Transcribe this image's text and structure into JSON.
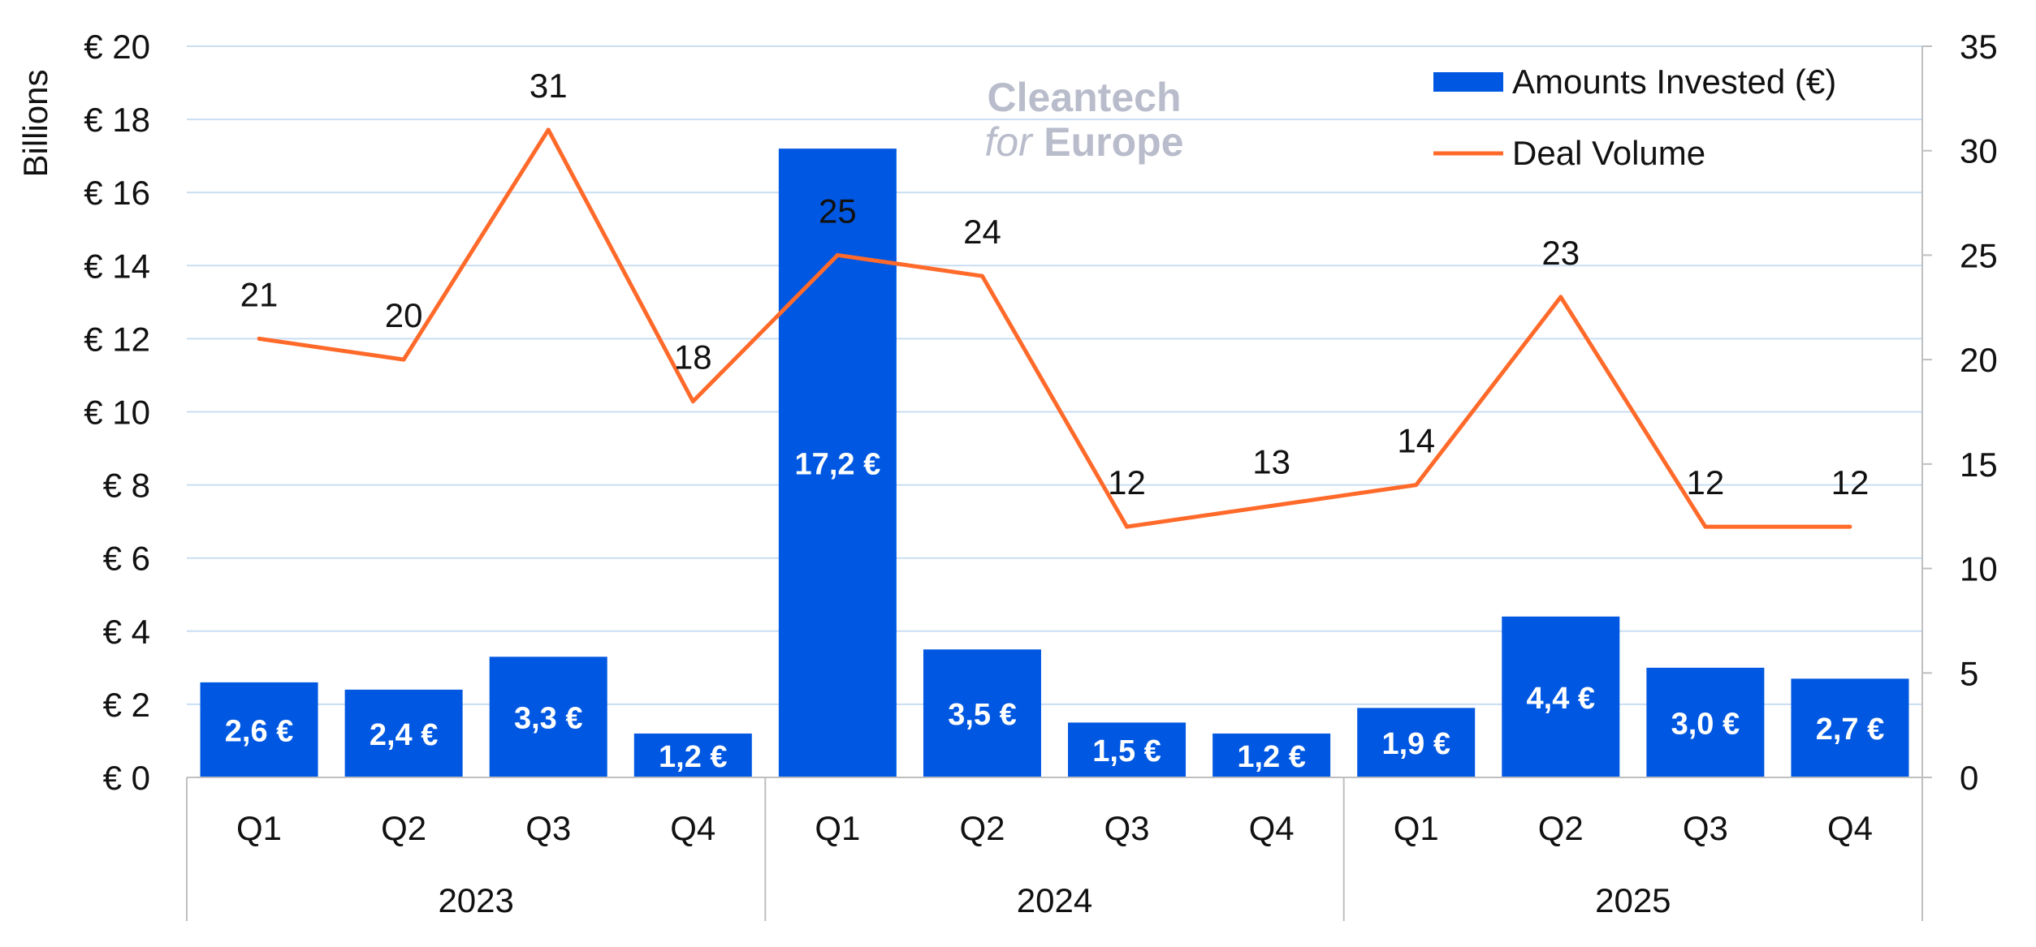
{
  "chart_data": {
    "type": "bar",
    "categories": [
      "Q1",
      "Q2",
      "Q3",
      "Q4",
      "Q1",
      "Q2",
      "Q3",
      "Q4",
      "Q1",
      "Q2",
      "Q3",
      "Q4"
    ],
    "groups": [
      {
        "label": "2023",
        "count": 4
      },
      {
        "label": "2024",
        "count": 4
      },
      {
        "label": "2025",
        "count": 4
      }
    ],
    "ylabel": "Billions",
    "ylim": [
      0,
      20
    ],
    "y_ticks": [
      "€ 0",
      "€ 2",
      "€ 4",
      "€ 6",
      "€ 8",
      "€ 10",
      "€ 12",
      "€ 14",
      "€ 16",
      "€ 18",
      "€ 20"
    ],
    "y2lim": [
      0,
      35
    ],
    "y2_ticks": [
      "0",
      "5",
      "10",
      "15",
      "20",
      "25",
      "30",
      "35"
    ],
    "grid": true,
    "legend_position": "top-right",
    "series": [
      {
        "name": "Amounts Invested (€)",
        "kind": "bar",
        "axis": "left",
        "color": "#0057e1",
        "values": [
          2.6,
          2.4,
          3.3,
          1.2,
          17.2,
          3.5,
          1.5,
          1.2,
          1.9,
          4.4,
          3.0,
          2.7
        ],
        "labels": [
          "2,6 €",
          "2,4 €",
          "3,3 €",
          "1,2 €",
          "17,2 €",
          "3,5 €",
          "1,5 €",
          "1,2 €",
          "1,9 €",
          "4,4 €",
          "3,0 €",
          "2,7 €"
        ]
      },
      {
        "name": "Deal Volume",
        "kind": "line",
        "axis": "right",
        "color": "#ff6a2a",
        "values": [
          21,
          20,
          31,
          18,
          25,
          24,
          12,
          13,
          14,
          23,
          12,
          12
        ],
        "labels": [
          "21",
          "20",
          "31",
          "18",
          "25",
          "24",
          "12",
          "13",
          "14",
          "23",
          "12",
          "12"
        ]
      }
    ]
  },
  "watermark": {
    "line1": "Cleantech",
    "line2_italic": "for",
    "line2": "Europe"
  },
  "colors": {
    "grid": "#c9def2",
    "axis": "#bfbfbf"
  }
}
